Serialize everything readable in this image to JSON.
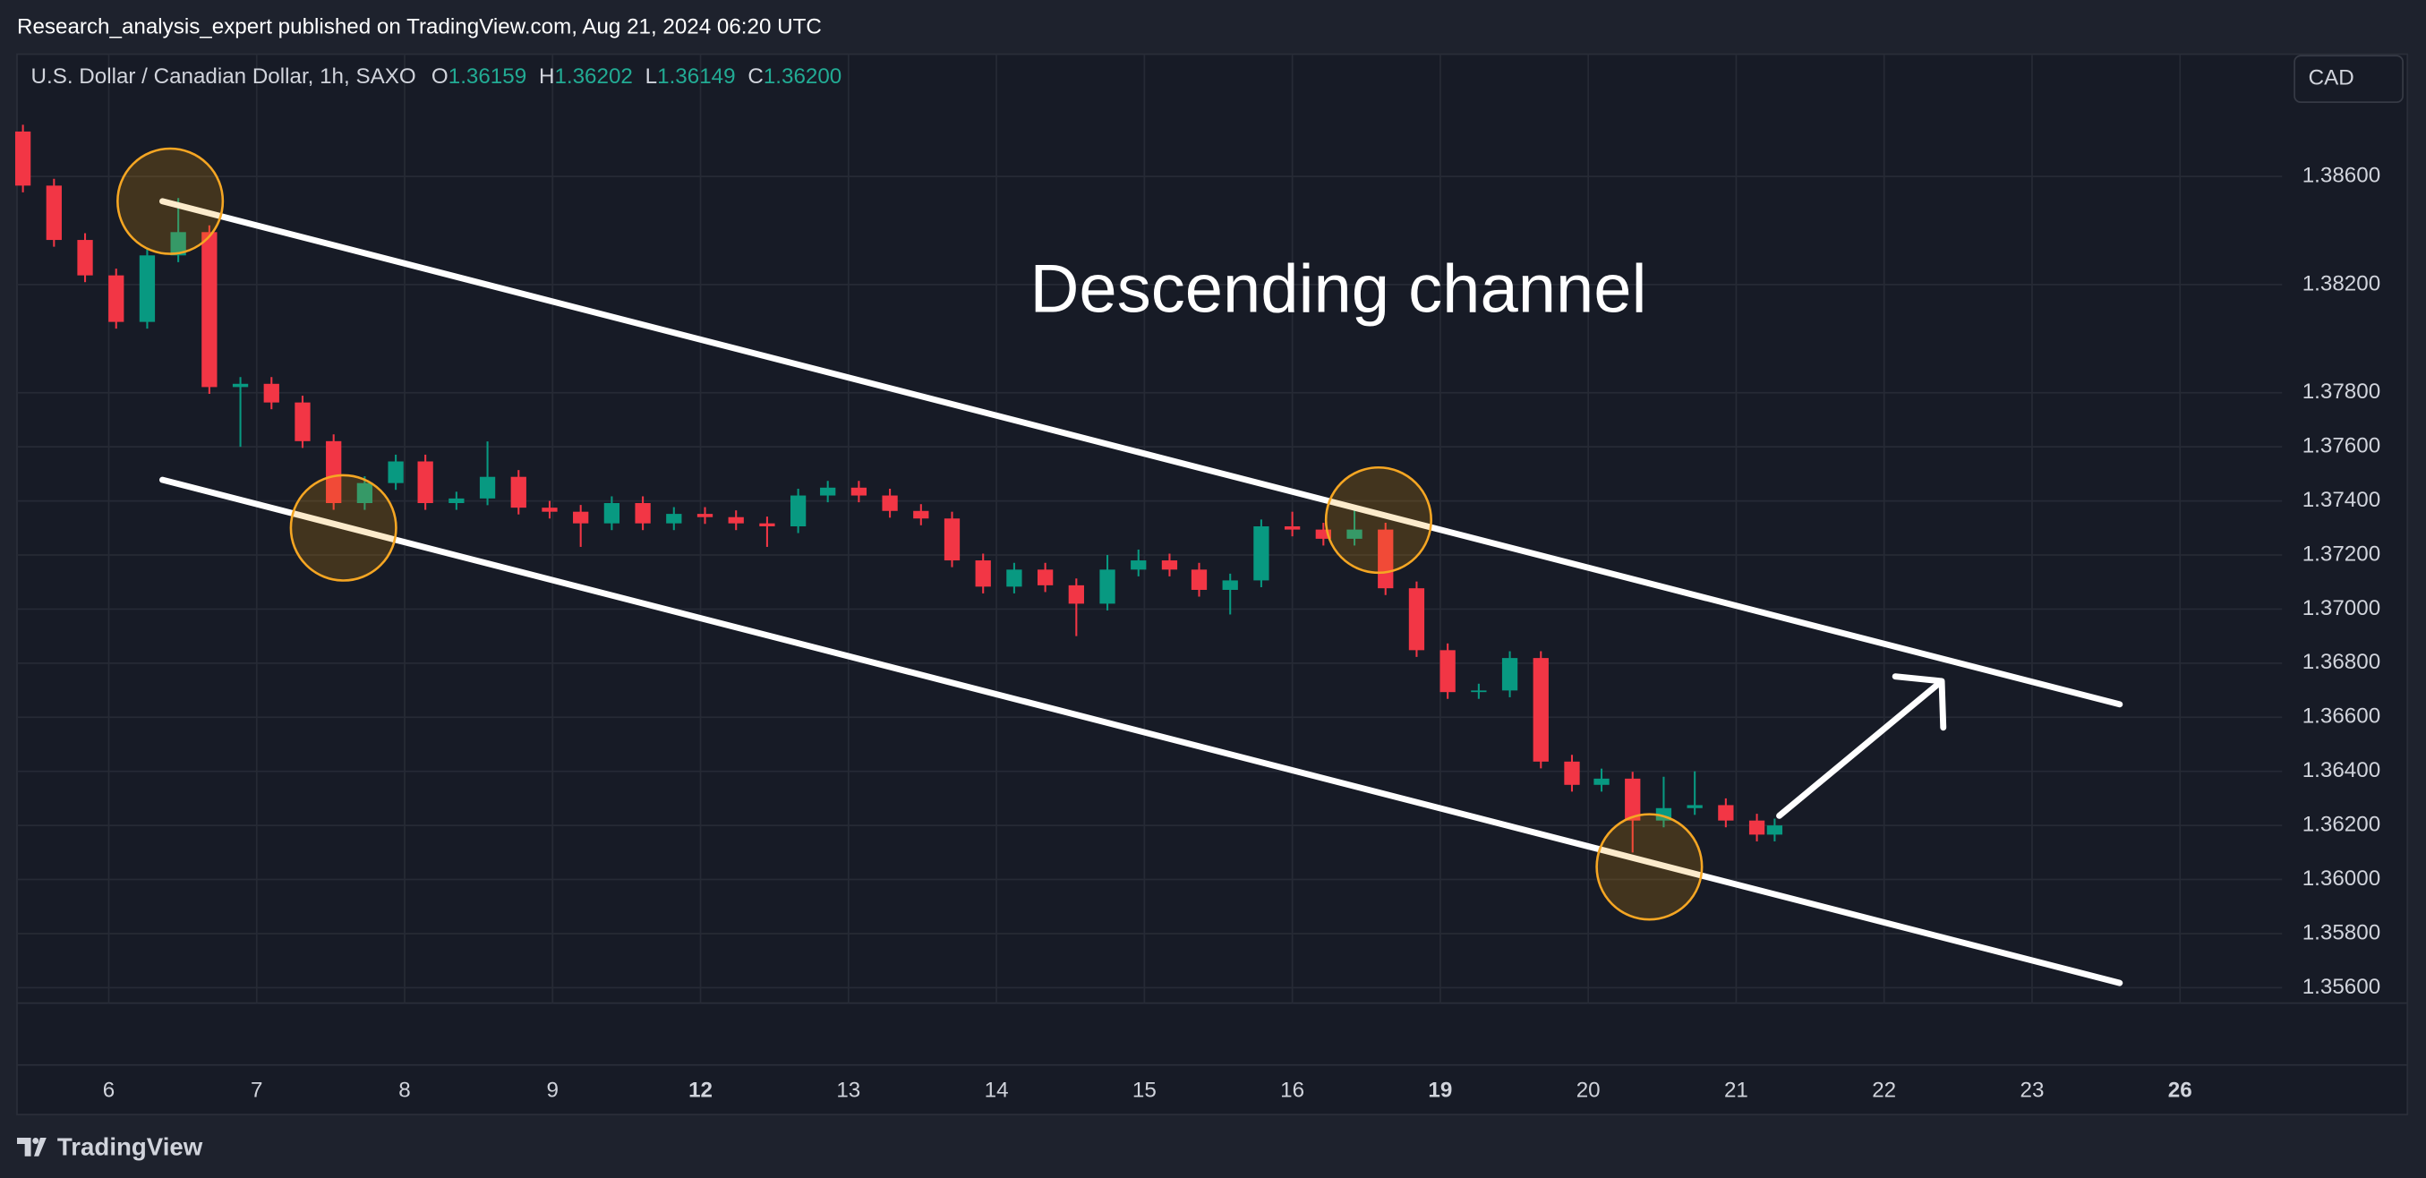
{
  "header": {
    "published": "Research_analysis_expert published on TradingView.com, Aug 21, 2024 06:20 UTC"
  },
  "footer": {
    "brand": "TradingView"
  },
  "chart_data": {
    "type": "candlestick",
    "title": "U.S. Dollar / Canadian Dollar, 1h, SAXO",
    "ohlc_header": [
      {
        "label": "O",
        "value": "1.36159"
      },
      {
        "label": "H",
        "value": "1.36202"
      },
      {
        "label": "L",
        "value": "1.36149"
      },
      {
        "label": "C",
        "value": "1.36200"
      }
    ],
    "annotation": "Descending channel",
    "currency": "CAD",
    "up_color": "#089981",
    "down_color": "#f23645",
    "grid": true,
    "x": [
      -0.58,
      -0.37,
      -0.16,
      0.05,
      0.26,
      0.47,
      0.68,
      0.89,
      1.1,
      1.31,
      1.52,
      1.73,
      1.94,
      2.14,
      2.35,
      2.56,
      2.77,
      2.98,
      3.19,
      3.4,
      3.61,
      3.82,
      4.03,
      4.24,
      4.45,
      4.66,
      4.86,
      5.07,
      5.28,
      5.49,
      5.7,
      5.91,
      6.12,
      6.33,
      6.54,
      6.75,
      6.96,
      7.17,
      7.37,
      7.58,
      7.79,
      8.0,
      8.21,
      8.42,
      8.63,
      8.84,
      9.05,
      9.26,
      9.47,
      9.68,
      9.89,
      10.09,
      10.3,
      10.51,
      10.72,
      10.93,
      11.14,
      11.26
    ],
    "open": [
      1.38766,
      1.38566,
      1.38365,
      1.38234,
      1.38062,
      1.38308,
      1.38394,
      1.37821,
      1.37833,
      1.37764,
      1.37621,
      1.37392,
      1.37466,
      1.37546,
      1.37392,
      1.37409,
      1.37489,
      1.37375,
      1.3736,
      1.37317,
      1.37392,
      1.37317,
      1.37352,
      1.3734,
      1.37317,
      1.37306,
      1.3742,
      1.37449,
      1.3742,
      1.37363,
      1.37335,
      1.3718,
      1.37083,
      1.37146,
      1.37088,
      1.3702,
      1.37146,
      1.3718,
      1.37146,
      1.37071,
      1.37106,
      1.37306,
      1.37294,
      1.3726,
      1.37294,
      1.37077,
      1.36848,
      1.36693,
      1.36699,
      1.36819,
      1.36436,
      1.3635,
      1.36373,
      1.36218,
      1.36264,
      1.36275,
      1.36218,
      1.36166
    ],
    "high": [
      1.38791,
      1.38591,
      1.3839,
      1.38259,
      1.38333,
      1.3852,
      1.38419,
      1.37858,
      1.37858,
      1.37789,
      1.37646,
      1.37491,
      1.37571,
      1.37571,
      1.37434,
      1.3762,
      1.37514,
      1.374,
      1.37385,
      1.37417,
      1.37417,
      1.37377,
      1.37377,
      1.37365,
      1.37342,
      1.37445,
      1.37474,
      1.37474,
      1.37445,
      1.37388,
      1.3736,
      1.37205,
      1.37171,
      1.37171,
      1.37113,
      1.372,
      1.3722,
      1.37205,
      1.37171,
      1.37131,
      1.37331,
      1.3736,
      1.37319,
      1.3738,
      1.37319,
      1.37102,
      1.36873,
      1.36724,
      1.36844,
      1.36844,
      1.36461,
      1.3641,
      1.36398,
      1.3638,
      1.364,
      1.363,
      1.36243,
      1.36225
    ],
    "low": [
      1.38541,
      1.3834,
      1.38209,
      1.38037,
      1.38037,
      1.38283,
      1.37796,
      1.376,
      1.37739,
      1.37596,
      1.37367,
      1.37367,
      1.37441,
      1.37367,
      1.37367,
      1.37384,
      1.3735,
      1.37335,
      1.3723,
      1.37292,
      1.37292,
      1.37292,
      1.37315,
      1.37292,
      1.3723,
      1.37281,
      1.37395,
      1.37395,
      1.37338,
      1.3731,
      1.37155,
      1.37058,
      1.37058,
      1.37063,
      1.369,
      1.36995,
      1.37121,
      1.37121,
      1.37046,
      1.3698,
      1.37081,
      1.37269,
      1.37235,
      1.37235,
      1.37052,
      1.36823,
      1.36668,
      1.36668,
      1.36674,
      1.36411,
      1.36325,
      1.36325,
      1.361,
      1.36193,
      1.36239,
      1.36193,
      1.36141,
      1.36141
    ],
    "close": [
      1.38566,
      1.38365,
      1.38234,
      1.38062,
      1.38308,
      1.38394,
      1.37821,
      1.37833,
      1.37764,
      1.37621,
      1.37392,
      1.37466,
      1.37546,
      1.37392,
      1.37409,
      1.37489,
      1.37375,
      1.3736,
      1.37317,
      1.37392,
      1.37317,
      1.37352,
      1.3734,
      1.37317,
      1.37306,
      1.3742,
      1.37449,
      1.3742,
      1.37363,
      1.37335,
      1.3718,
      1.37083,
      1.37146,
      1.37088,
      1.3702,
      1.37146,
      1.3718,
      1.37146,
      1.37071,
      1.37106,
      1.37306,
      1.37294,
      1.3726,
      1.37294,
      1.37077,
      1.36848,
      1.36693,
      1.36699,
      1.36819,
      1.36436,
      1.3635,
      1.36373,
      1.36218,
      1.36264,
      1.36275,
      1.36218,
      1.36166,
      1.362
    ],
    "xlim": [
      -0.62,
      14.69
    ],
    "ylim": [
      1.35543,
      1.39052
    ],
    "xticks": [
      {
        "value": 0,
        "label": "6"
      },
      {
        "value": 1,
        "label": "7"
      },
      {
        "value": 2,
        "label": "8"
      },
      {
        "value": 3,
        "label": "9"
      },
      {
        "value": 4,
        "label": "12",
        "bold": true
      },
      {
        "value": 5,
        "label": "13"
      },
      {
        "value": 6,
        "label": "14"
      },
      {
        "value": 7,
        "label": "15"
      },
      {
        "value": 8,
        "label": "16"
      },
      {
        "value": 9,
        "label": "19",
        "bold": true
      },
      {
        "value": 10,
        "label": "20"
      },
      {
        "value": 11,
        "label": "21"
      },
      {
        "value": 12,
        "label": "22"
      },
      {
        "value": 13,
        "label": "23"
      },
      {
        "value": 14,
        "label": "26",
        "bold": true
      }
    ],
    "yticks": [
      {
        "value": 1.356,
        "label": "1.35600"
      },
      {
        "value": 1.358,
        "label": "1.35800"
      },
      {
        "value": 1.36,
        "label": "1.36000"
      },
      {
        "value": 1.362,
        "label": "1.36200"
      },
      {
        "value": 1.364,
        "label": "1.36400"
      },
      {
        "value": 1.366,
        "label": "1.36600"
      },
      {
        "value": 1.368,
        "label": "1.36800"
      },
      {
        "value": 1.37,
        "label": "1.37000"
      },
      {
        "value": 1.372,
        "label": "1.37200"
      },
      {
        "value": 1.374,
        "label": "1.37400"
      },
      {
        "value": 1.376,
        "label": "1.37600"
      },
      {
        "value": 1.378,
        "label": "1.37800"
      },
      {
        "value": 1.382,
        "label": "1.38200"
      },
      {
        "value": 1.386,
        "label": "1.38600"
      }
    ]
  }
}
